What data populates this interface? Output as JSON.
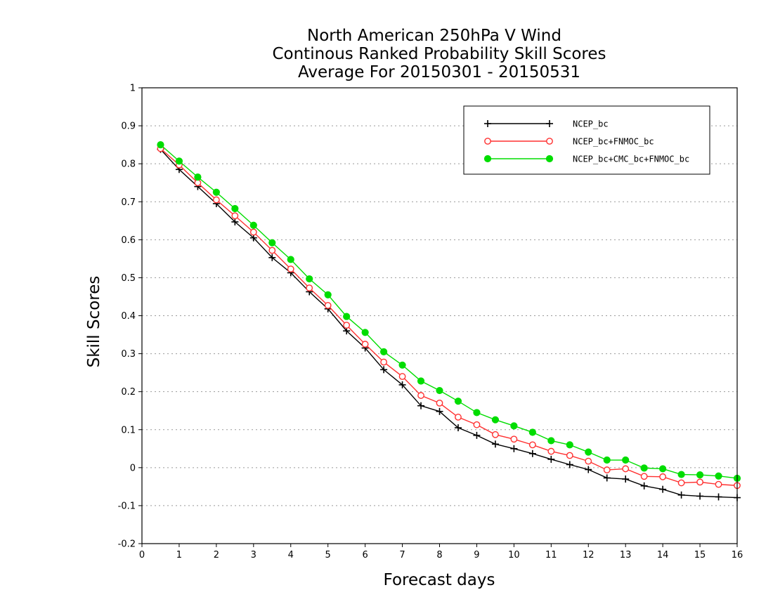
{
  "chart_data": {
    "type": "line",
    "title_lines": [
      "North American 250hPa V Wind",
      "Continous Ranked Probability Skill Scores",
      "Average For 20150301 - 20150531"
    ],
    "xlabel": "Forecast days",
    "ylabel": "Skill Scores",
    "xlim": [
      0,
      16
    ],
    "ylim": [
      -0.2,
      1
    ],
    "xticks": [
      "0",
      "1",
      "2",
      "3",
      "4",
      "5",
      "6",
      "7",
      "8",
      "9",
      "10",
      "11",
      "12",
      "13",
      "14",
      "15",
      "16"
    ],
    "yticks": [
      "-0.2",
      "-0.1",
      "0",
      "0.1",
      "0.2",
      "0.3",
      "0.4",
      "0.5",
      "0.6",
      "0.7",
      "0.8",
      "0.9",
      "1"
    ],
    "grid": "horizontal dotted",
    "legend_position": "top-right",
    "x": [
      0.5,
      1,
      1.5,
      2,
      2.5,
      3,
      3.5,
      4,
      4.5,
      5,
      5.5,
      6,
      6.5,
      7,
      7.5,
      8,
      8.5,
      9,
      9.5,
      10,
      10.5,
      11,
      11.5,
      12,
      12.5,
      13,
      13.5,
      14,
      14.5,
      15,
      15.5,
      16
    ],
    "series": [
      {
        "name": "NCEP_bc",
        "color": "#000000",
        "marker": "plus",
        "values": [
          0.838,
          0.785,
          0.74,
          0.695,
          0.647,
          0.605,
          0.553,
          0.513,
          0.463,
          0.418,
          0.36,
          0.315,
          0.258,
          0.218,
          0.163,
          0.148,
          0.105,
          0.085,
          0.062,
          0.05,
          0.037,
          0.022,
          0.008,
          -0.005,
          -0.027,
          -0.03,
          -0.048,
          -0.057,
          -0.072,
          -0.075,
          -0.077,
          -0.079
        ]
      },
      {
        "name": "NCEP_bc+FNMOC_bc",
        "color": "#ff3030",
        "marker": "open-circle",
        "values": [
          0.84,
          0.797,
          0.75,
          0.705,
          0.663,
          0.62,
          0.572,
          0.523,
          0.473,
          0.427,
          0.375,
          0.325,
          0.278,
          0.24,
          0.19,
          0.17,
          0.133,
          0.113,
          0.087,
          0.075,
          0.06,
          0.043,
          0.032,
          0.017,
          -0.006,
          -0.003,
          -0.023,
          -0.024,
          -0.04,
          -0.038,
          -0.044,
          -0.047
        ]
      },
      {
        "name": "NCEP_bc+CMC_bc+FNMOC_bc",
        "color": "#00dd00",
        "marker": "filled-circle",
        "values": [
          0.85,
          0.807,
          0.765,
          0.725,
          0.682,
          0.638,
          0.592,
          0.548,
          0.497,
          0.455,
          0.398,
          0.356,
          0.305,
          0.27,
          0.228,
          0.203,
          0.175,
          0.145,
          0.126,
          0.11,
          0.093,
          0.071,
          0.06,
          0.041,
          0.02,
          0.02,
          -0.001,
          -0.003,
          -0.018,
          -0.019,
          -0.022,
          -0.028
        ]
      }
    ]
  }
}
